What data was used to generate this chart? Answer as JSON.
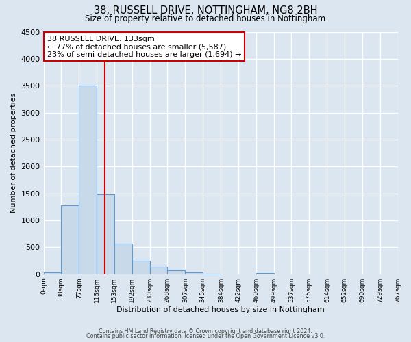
{
  "title1": "38, RUSSELL DRIVE, NOTTINGHAM, NG8 2BH",
  "title2": "Size of property relative to detached houses in Nottingham",
  "xlabel": "Distribution of detached houses by size in Nottingham",
  "ylabel": "Number of detached properties",
  "bin_edges": [
    0,
    38,
    77,
    115,
    153,
    192,
    230,
    268,
    307,
    345,
    384,
    422,
    460,
    499,
    537,
    575,
    614,
    652,
    690,
    729,
    767
  ],
  "bin_counts": [
    30,
    1280,
    3500,
    1480,
    570,
    250,
    130,
    75,
    30,
    5,
    0,
    0,
    20,
    0,
    0,
    0,
    0,
    0,
    0,
    0
  ],
  "bar_color": "#c8d9ea",
  "bar_edge_color": "#5b9bd5",
  "vline_x": 133,
  "vline_color": "#cc0000",
  "ylim": [
    0,
    4500
  ],
  "yticks": [
    0,
    500,
    1000,
    1500,
    2000,
    2500,
    3000,
    3500,
    4000,
    4500
  ],
  "annotation_title": "38 RUSSELL DRIVE: 133sqm",
  "annotation_line1": "← 77% of detached houses are smaller (5,587)",
  "annotation_line2": "23% of semi-detached houses are larger (1,694) →",
  "annotation_box_color": "#ffffff",
  "annotation_box_edge": "#cc0000",
  "footer1": "Contains HM Land Registry data © Crown copyright and database right 2024.",
  "footer2": "Contains public sector information licensed under the Open Government Licence v3.0.",
  "background_color": "#dce6f0",
  "plot_bg_color": "#dce6f0",
  "grid_color": "#ffffff",
  "tick_labels": [
    "0sqm",
    "38sqm",
    "77sqm",
    "115sqm",
    "153sqm",
    "192sqm",
    "230sqm",
    "268sqm",
    "307sqm",
    "345sqm",
    "384sqm",
    "422sqm",
    "460sqm",
    "499sqm",
    "537sqm",
    "575sqm",
    "614sqm",
    "652sqm",
    "690sqm",
    "729sqm",
    "767sqm"
  ]
}
